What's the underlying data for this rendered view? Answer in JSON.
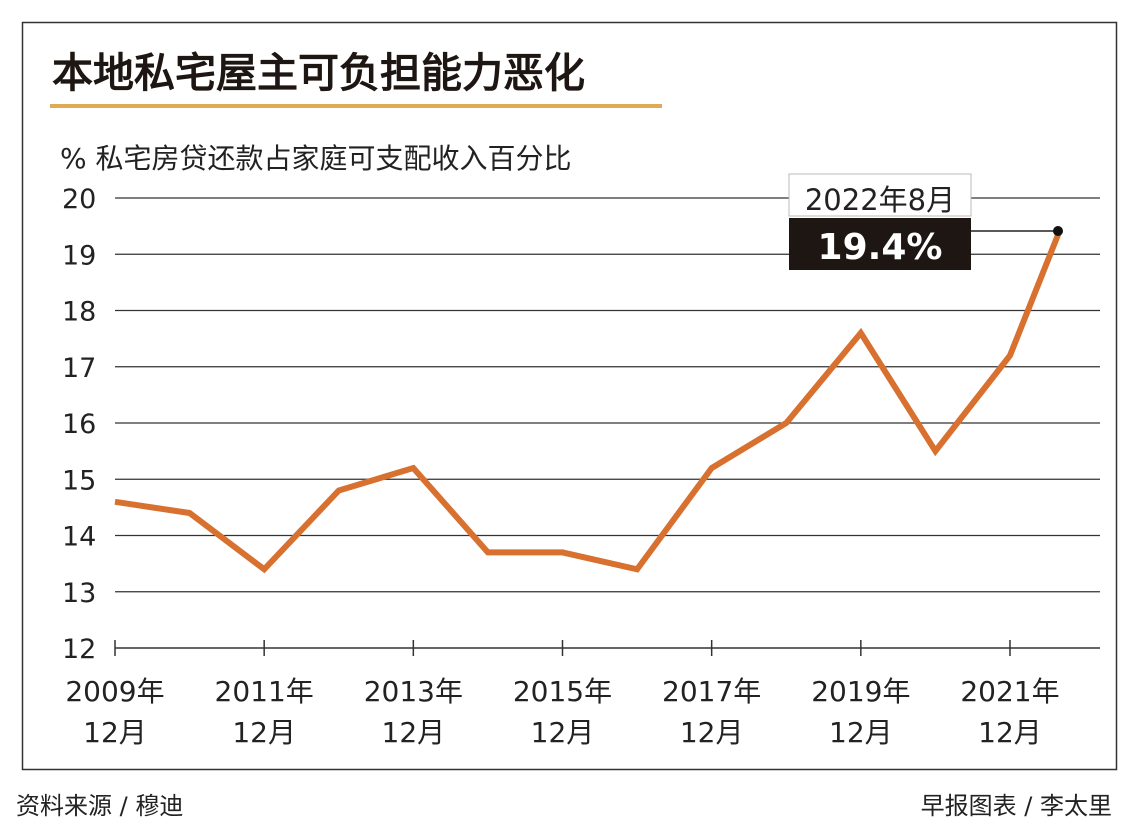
{
  "chart_data": {
    "type": "line",
    "title": "本地私宅屋主可负担能力恶化",
    "ylabel": "% 私宅房贷还款占家庭可支配收入百分比",
    "xlabel": "",
    "ylim": [
      12,
      20
    ],
    "yticks": [
      "20",
      "19",
      "18",
      "17",
      "16",
      "15",
      "14",
      "13",
      "12"
    ],
    "xticks": [
      {
        "year": "2009年",
        "month": "12月",
        "x": 2009.92
      },
      {
        "year": "2011年",
        "month": "12月",
        "x": 2011.92
      },
      {
        "year": "2013年",
        "month": "12月",
        "x": 2013.92
      },
      {
        "year": "2015年",
        "month": "12月",
        "x": 2015.92
      },
      {
        "year": "2017年",
        "month": "12月",
        "x": 2017.92
      },
      {
        "year": "2019年",
        "month": "12月",
        "x": 2019.92
      },
      {
        "year": "2021年",
        "month": "12月",
        "x": 2021.92
      }
    ],
    "grid": true,
    "line_color": "#d8702f",
    "series": [
      {
        "x": [
          2009.92,
          2010.92,
          2011.92,
          2012.92,
          2013.92,
          2014.92,
          2015.92,
          2016.92,
          2017.92,
          2018.92,
          2019.92,
          2020.92,
          2021.92,
          2022.58
        ],
        "values": [
          14.6,
          14.4,
          13.4,
          14.8,
          15.2,
          13.7,
          13.7,
          13.4,
          15.2,
          16.0,
          17.6,
          15.5,
          17.2,
          19.4
        ]
      }
    ],
    "annotation": {
      "date": "2022年8月",
      "value": "19.4%"
    }
  },
  "footer": {
    "source": "资料来源 / 穆迪",
    "credit": "早报图表 / 李太里"
  },
  "colors": {
    "title_underline": "#e0aa55",
    "annotation_bg": "#1e1612"
  }
}
